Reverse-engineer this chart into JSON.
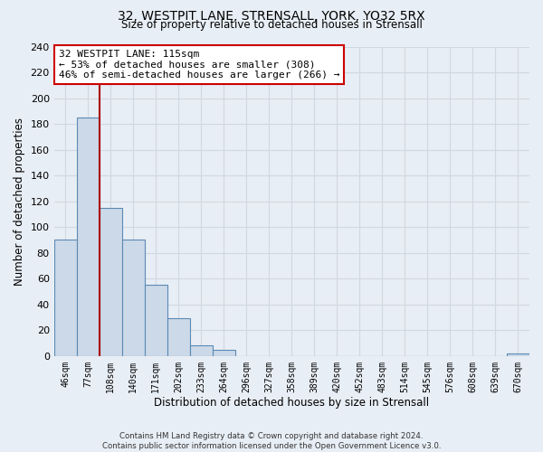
{
  "title_line1": "32, WESTPIT LANE, STRENSALL, YORK, YO32 5RX",
  "title_line2": "Size of property relative to detached houses in Strensall",
  "xlabel": "Distribution of detached houses by size in Strensall",
  "ylabel": "Number of detached properties",
  "bin_labels": [
    "46sqm",
    "77sqm",
    "108sqm",
    "140sqm",
    "171sqm",
    "202sqm",
    "233sqm",
    "264sqm",
    "296sqm",
    "327sqm",
    "358sqm",
    "389sqm",
    "420sqm",
    "452sqm",
    "483sqm",
    "514sqm",
    "545sqm",
    "576sqm",
    "608sqm",
    "639sqm",
    "670sqm"
  ],
  "bar_values": [
    90,
    185,
    115,
    90,
    55,
    29,
    8,
    5,
    0,
    0,
    0,
    0,
    0,
    0,
    0,
    0,
    0,
    0,
    0,
    0,
    2
  ],
  "bar_fill_color": "#ccd9e8",
  "bar_edge_color": "#5a8ab5",
  "highlight_line_color": "#aa0000",
  "ylim": [
    0,
    240
  ],
  "yticks": [
    0,
    20,
    40,
    60,
    80,
    100,
    120,
    140,
    160,
    180,
    200,
    220,
    240
  ],
  "annotation_title": "32 WESTPIT LANE: 115sqm",
  "annotation_line1": "← 53% of detached houses are smaller (308)",
  "annotation_line2": "46% of semi-detached houses are larger (266) →",
  "annotation_box_facecolor": "#ffffff",
  "annotation_box_edgecolor": "#cc0000",
  "footer_line1": "Contains HM Land Registry data © Crown copyright and database right 2024.",
  "footer_line2": "Contains public sector information licensed under the Open Government Licence v3.0.",
  "background_color": "#e8eef5",
  "grid_color": "#d0d8e0"
}
